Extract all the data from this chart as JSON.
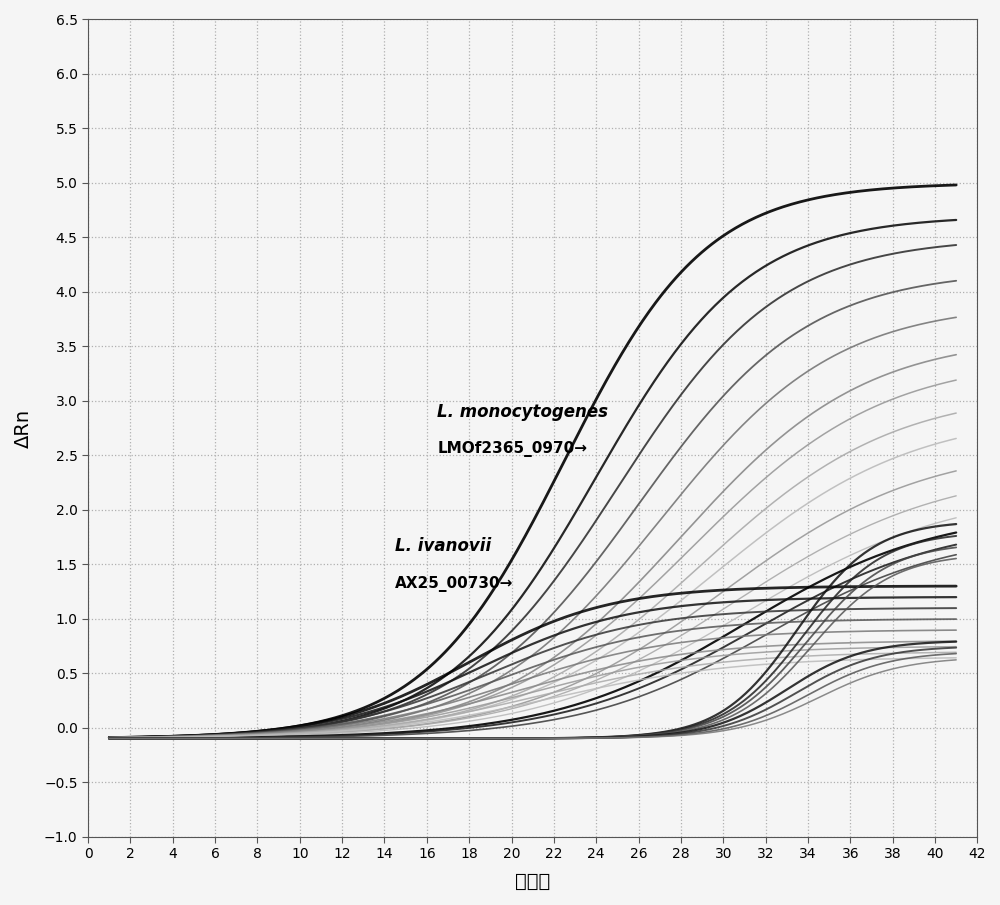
{
  "xlabel": "循环数",
  "ylabel": "ΔRn",
  "xlim": [
    0,
    42
  ],
  "ylim": [
    -1.0,
    6.5
  ],
  "xticks": [
    0,
    2,
    4,
    6,
    8,
    10,
    12,
    14,
    16,
    18,
    20,
    22,
    24,
    26,
    28,
    30,
    32,
    34,
    36,
    38,
    40,
    42
  ],
  "yticks": [
    -1.0,
    -0.5,
    0.0,
    0.5,
    1.0,
    1.5,
    2.0,
    2.5,
    3.0,
    3.5,
    4.0,
    4.5,
    5.0,
    5.5,
    6.0,
    6.5
  ],
  "background_color": "#f5f5f5",
  "grid_color": "#b0b0b0",
  "ann1_text1": "L. monocytogenes",
  "ann1_text2": "LMOf2365_0970→",
  "ann2_text1": "L. ivanovii",
  "ann2_text2": "AX25_00730→",
  "lmo_curves": [
    {
      "L": 5.1,
      "k": 0.3,
      "x0": 22.5,
      "color": "#000000",
      "lw": 2.0
    },
    {
      "L": 4.8,
      "k": 0.28,
      "x0": 24.0,
      "color": "#111111",
      "lw": 1.6
    },
    {
      "L": 4.6,
      "k": 0.26,
      "x0": 25.0,
      "color": "#333333",
      "lw": 1.4
    },
    {
      "L": 4.3,
      "k": 0.25,
      "x0": 26.0,
      "color": "#555555",
      "lw": 1.3
    },
    {
      "L": 4.0,
      "k": 0.24,
      "x0": 27.0,
      "color": "#777777",
      "lw": 1.2
    },
    {
      "L": 3.7,
      "k": 0.23,
      "x0": 28.0,
      "color": "#888888",
      "lw": 1.2
    },
    {
      "L": 3.5,
      "k": 0.22,
      "x0": 28.5,
      "color": "#999999",
      "lw": 1.1
    },
    {
      "L": 3.2,
      "k": 0.22,
      "x0": 29.0,
      "color": "#aaaaaa",
      "lw": 1.1
    },
    {
      "L": 3.0,
      "k": 0.21,
      "x0": 29.5,
      "color": "#bbbbbb",
      "lw": 1.1
    },
    {
      "L": 2.7,
      "k": 0.21,
      "x0": 30.0,
      "color": "#999999",
      "lw": 1.1
    },
    {
      "L": 2.5,
      "k": 0.2,
      "x0": 30.5,
      "color": "#aaaaaa",
      "lw": 1.0
    },
    {
      "L": 2.3,
      "k": 0.2,
      "x0": 31.0,
      "color": "#bbbbbb",
      "lw": 1.0
    },
    {
      "L": 2.1,
      "k": 0.22,
      "x0": 31.0,
      "color": "#000000",
      "lw": 1.6
    },
    {
      "L": 2.0,
      "k": 0.22,
      "x0": 31.5,
      "color": "#222222",
      "lw": 1.4
    },
    {
      "L": 1.9,
      "k": 0.23,
      "x0": 32.0,
      "color": "#444444",
      "lw": 1.2
    }
  ],
  "liva_early_curves": [
    {
      "L": 1.4,
      "k": 0.3,
      "x0": 18.0,
      "color": "#000000",
      "lw": 2.0
    },
    {
      "L": 1.3,
      "k": 0.28,
      "x0": 18.5,
      "color": "#111111",
      "lw": 1.6
    },
    {
      "L": 1.2,
      "k": 0.27,
      "x0": 19.0,
      "color": "#333333",
      "lw": 1.4
    },
    {
      "L": 1.1,
      "k": 0.26,
      "x0": 19.5,
      "color": "#555555",
      "lw": 1.3
    },
    {
      "L": 1.0,
      "k": 0.25,
      "x0": 20.0,
      "color": "#777777",
      "lw": 1.2
    },
    {
      "L": 0.9,
      "k": 0.24,
      "x0": 20.5,
      "color": "#888888",
      "lw": 1.2
    },
    {
      "L": 0.85,
      "k": 0.24,
      "x0": 21.0,
      "color": "#999999",
      "lw": 1.1
    },
    {
      "L": 0.8,
      "k": 0.23,
      "x0": 21.5,
      "color": "#aaaaaa",
      "lw": 1.1
    },
    {
      "L": 0.75,
      "k": 0.23,
      "x0": 22.0,
      "color": "#bbbbbb",
      "lw": 1.1
    }
  ],
  "liva_late_curves": [
    {
      "L": 2.0,
      "k": 0.55,
      "x0": 33.5,
      "color": "#111111",
      "lw": 1.6
    },
    {
      "L": 1.9,
      "k": 0.53,
      "x0": 33.8,
      "color": "#222222",
      "lw": 1.4
    },
    {
      "L": 1.8,
      "k": 0.52,
      "x0": 34.0,
      "color": "#444444",
      "lw": 1.3
    },
    {
      "L": 1.7,
      "k": 0.52,
      "x0": 34.2,
      "color": "#555555",
      "lw": 1.2
    },
    {
      "L": 0.9,
      "k": 0.55,
      "x0": 33.0,
      "color": "#111111",
      "lw": 1.6
    },
    {
      "L": 0.85,
      "k": 0.53,
      "x0": 33.5,
      "color": "#333333",
      "lw": 1.4
    },
    {
      "L": 0.8,
      "k": 0.52,
      "x0": 34.0,
      "color": "#555555",
      "lw": 1.2
    },
    {
      "L": 0.75,
      "k": 0.5,
      "x0": 34.5,
      "color": "#777777",
      "lw": 1.1
    }
  ]
}
